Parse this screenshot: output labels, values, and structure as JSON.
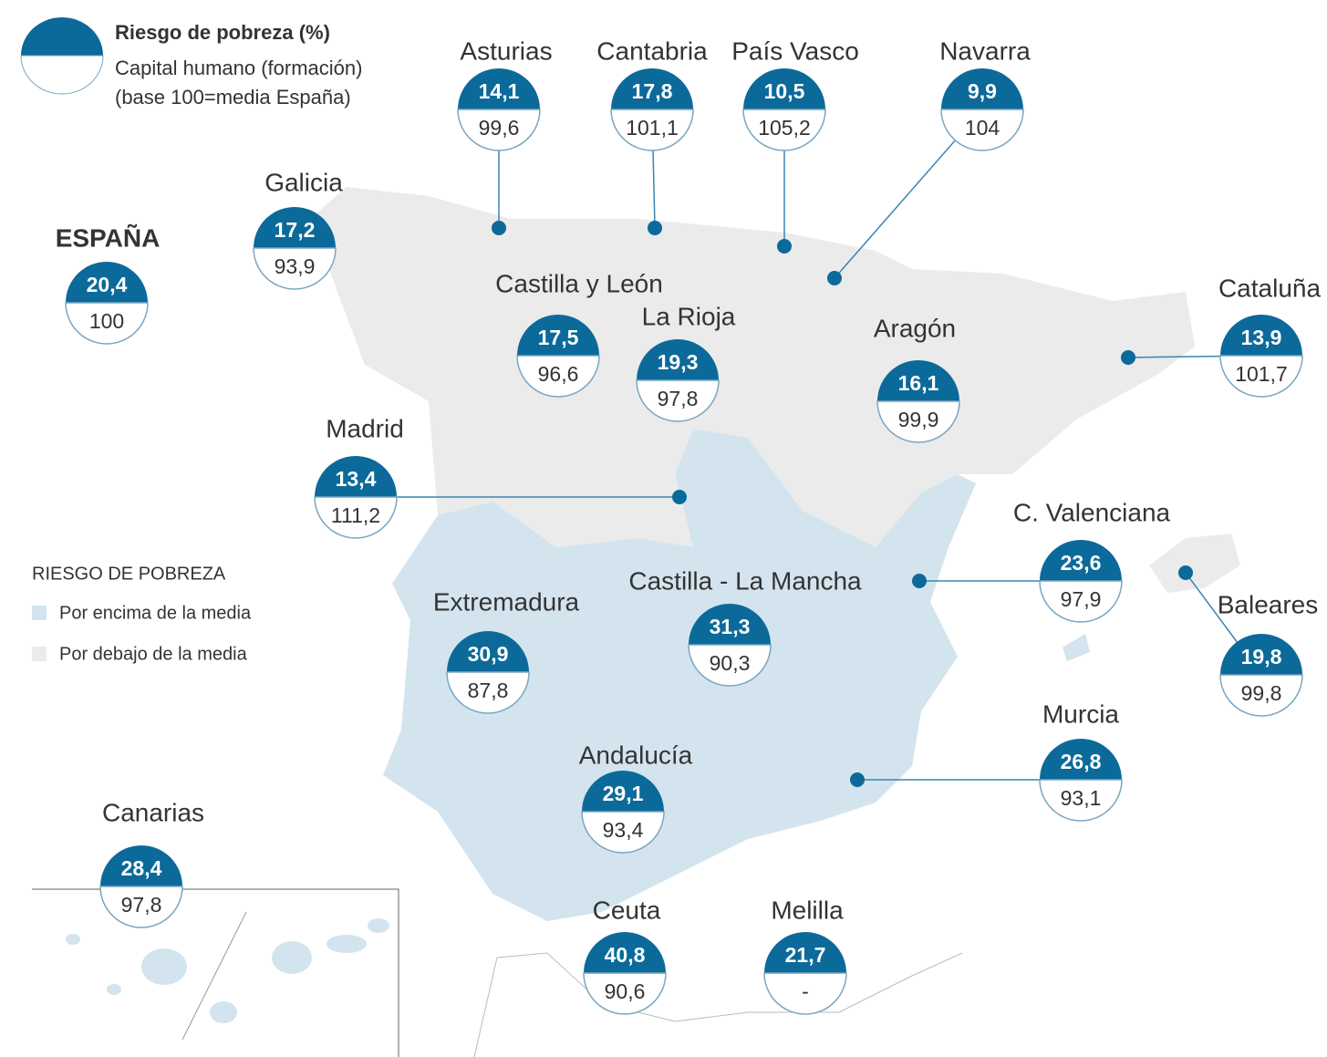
{
  "legend": {
    "title": "Riesgo de pobreza (%)",
    "line1": "Capital humano (formación)",
    "line2": "(base 100=media España)"
  },
  "key": {
    "title": "RIESGO DE POBREZA",
    "above": "Por encima de la media",
    "below": "Por debajo de la media"
  },
  "spain": {
    "name": "ESPAÑA",
    "risk": "20,4",
    "capital": "100"
  },
  "regions": [
    {
      "name": "Asturias",
      "risk": "14,1",
      "capital": "99,6"
    },
    {
      "name": "Cantabria",
      "risk": "17,8",
      "capital": "101,1"
    },
    {
      "name": "País Vasco",
      "risk": "10,5",
      "capital": "105,2"
    },
    {
      "name": "Navarra",
      "risk": "9,9",
      "capital": "104"
    },
    {
      "name": "Galicia",
      "risk": "17,2",
      "capital": "93,9"
    },
    {
      "name": "Castilla y León",
      "risk": "17,5",
      "capital": "96,6"
    },
    {
      "name": "La Rioja",
      "risk": "19,3",
      "capital": "97,8"
    },
    {
      "name": "Aragón",
      "risk": "16,1",
      "capital": "99,9"
    },
    {
      "name": "Cataluña",
      "risk": "13,9",
      "capital": "101,7"
    },
    {
      "name": "Madrid",
      "risk": "13,4",
      "capital": "111,2"
    },
    {
      "name": "C. Valenciana",
      "risk": "23,6",
      "capital": "97,9"
    },
    {
      "name": "Baleares",
      "risk": "19,8",
      "capital": "99,8"
    },
    {
      "name": "Castilla - La Mancha",
      "risk": "31,3",
      "capital": "90,3"
    },
    {
      "name": "Extremadura",
      "risk": "30,9",
      "capital": "87,8"
    },
    {
      "name": "Murcia",
      "risk": "26,8",
      "capital": "93,1"
    },
    {
      "name": "Andalucía",
      "risk": "29,1",
      "capital": "93,4"
    },
    {
      "name": "Canarias",
      "risk": "28,4",
      "capital": "97,8"
    },
    {
      "name": "Ceuta",
      "risk": "40,8",
      "capital": "90,6"
    },
    {
      "name": "Melilla",
      "risk": "21,7",
      "capital": "-"
    }
  ]
}
